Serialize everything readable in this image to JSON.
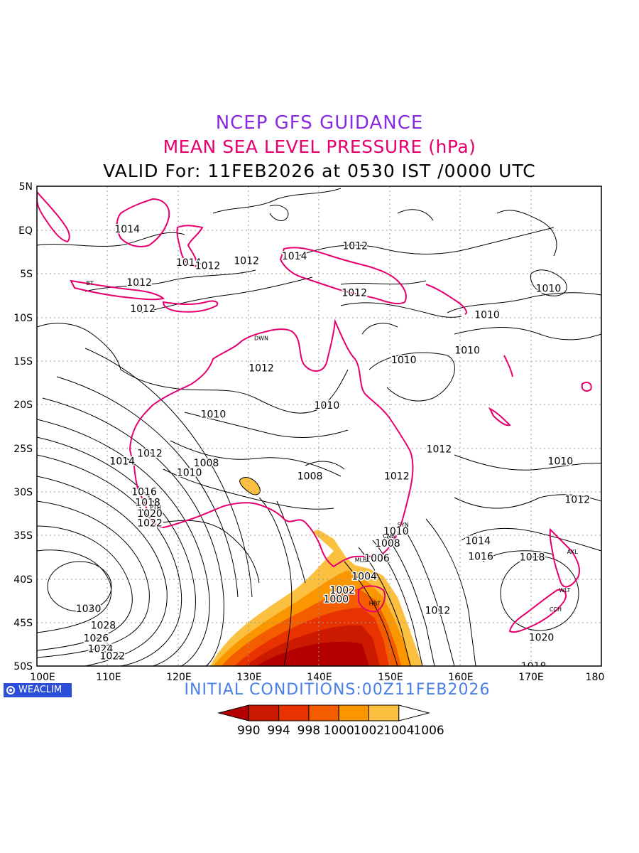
{
  "header": {
    "line1": "NCEP GFS GUIDANCE",
    "line2": "MEAN SEA LEVEL PRESSURE (hPa)",
    "line3": "VALID For: 11FEB2026 at 0530 IST /0000 UTC"
  },
  "footer": {
    "brand": "WEACLIM",
    "initial_conditions": "INITIAL CONDITIONS:00Z11FEB2026"
  },
  "axes": {
    "lat_labels": [
      "5N",
      "EQ",
      "5S",
      "10S",
      "15S",
      "20S",
      "25S",
      "30S",
      "35S",
      "40S",
      "45S",
      "50S"
    ],
    "lon_labels": [
      "100E",
      "110E",
      "120E",
      "130E",
      "140E",
      "150E",
      "160E",
      "170E",
      "180"
    ]
  },
  "colorbar": {
    "labels": [
      "990",
      "994",
      "998",
      "1000",
      "1002",
      "1004",
      "1006"
    ],
    "colors": [
      "#b40000",
      "#cc1a00",
      "#e83200",
      "#f45c00",
      "#fa9600",
      "#fcc040",
      "#ffffff"
    ]
  },
  "colors": {
    "title1": "#8a2be2",
    "title2": "#e6006e",
    "coastline": "#e6006e",
    "contour": "#000000",
    "brand_bg": "#2b4fd8",
    "initial": "#4a7fe8"
  },
  "contour_labels": [
    {
      "text": "1014",
      "lon": 112.8,
      "lat": 0.1
    },
    {
      "text": "1014",
      "lon": 121.5,
      "lat": -3.7
    },
    {
      "text": "1012",
      "lon": 124.2,
      "lat": -4.1
    },
    {
      "text": "1012",
      "lon": 129.7,
      "lat": -3.5
    },
    {
      "text": "1014",
      "lon": 136.5,
      "lat": -3.0
    },
    {
      "text": "1012",
      "lon": 145.1,
      "lat": -1.8
    },
    {
      "text": "1012",
      "lon": 114.5,
      "lat": -6.0
    },
    {
      "text": "1012",
      "lon": 145.0,
      "lat": -7.2
    },
    {
      "text": "1012",
      "lon": 115.0,
      "lat": -9.0
    },
    {
      "text": "1010",
      "lon": 172.5,
      "lat": -6.7
    },
    {
      "text": "1010",
      "lon": 163.8,
      "lat": -9.7
    },
    {
      "text": "1010",
      "lon": 161.0,
      "lat": -13.8
    },
    {
      "text": "1010",
      "lon": 152.0,
      "lat": -14.9
    },
    {
      "text": "1012",
      "lon": 131.8,
      "lat": -15.8
    },
    {
      "text": "1010",
      "lon": 141.1,
      "lat": -20.1
    },
    {
      "text": "1010",
      "lon": 125.0,
      "lat": -21.1
    },
    {
      "text": "1012",
      "lon": 116.0,
      "lat": -25.6
    },
    {
      "text": "1014",
      "lon": 112.1,
      "lat": -26.5
    },
    {
      "text": "1012",
      "lon": 157.0,
      "lat": -25.1
    },
    {
      "text": "1010",
      "lon": 174.2,
      "lat": -26.5
    },
    {
      "text": "1008",
      "lon": 124.0,
      "lat": -26.7
    },
    {
      "text": "1010",
      "lon": 121.6,
      "lat": -27.8
    },
    {
      "text": "1008",
      "lon": 138.7,
      "lat": -28.2
    },
    {
      "text": "1012",
      "lon": 151.0,
      "lat": -28.2
    },
    {
      "text": "1016",
      "lon": 115.2,
      "lat": -30.0
    },
    {
      "text": "1012",
      "lon": 176.6,
      "lat": -30.9
    },
    {
      "text": "1018",
      "lon": 115.7,
      "lat": -31.2
    },
    {
      "text": "1020",
      "lon": 116.0,
      "lat": -32.5
    },
    {
      "text": "1022",
      "lon": 116.0,
      "lat": -33.6
    },
    {
      "text": "1010",
      "lon": 150.9,
      "lat": -34.5
    },
    {
      "text": "1014",
      "lon": 162.5,
      "lat": -35.6
    },
    {
      "text": "1008",
      "lon": 149.7,
      "lat": -35.9
    },
    {
      "text": "1016",
      "lon": 162.9,
      "lat": -37.4
    },
    {
      "text": "1018",
      "lon": 170.2,
      "lat": -37.5
    },
    {
      "text": "1006",
      "lon": 148.2,
      "lat": -37.6
    },
    {
      "text": "1004",
      "lon": 146.4,
      "lat": -39.7
    },
    {
      "text": "1002",
      "lon": 143.3,
      "lat": -41.3
    },
    {
      "text": "1000",
      "lon": 142.4,
      "lat": -42.3
    },
    {
      "text": "1012",
      "lon": 156.8,
      "lat": -43.6
    },
    {
      "text": "1030",
      "lon": 107.3,
      "lat": -43.4
    },
    {
      "text": "1028",
      "lon": 109.4,
      "lat": -45.3
    },
    {
      "text": "1026",
      "lon": 108.4,
      "lat": -46.8
    },
    {
      "text": "1024",
      "lon": 109.0,
      "lat": -48.0
    },
    {
      "text": "1022",
      "lon": 110.7,
      "lat": -48.8
    },
    {
      "text": "1020",
      "lon": 171.5,
      "lat": -46.7
    },
    {
      "text": "1018",
      "lon": 170.4,
      "lat": -50.0
    }
  ],
  "station_labels": [
    {
      "text": "DWN",
      "lon": 131.8,
      "lat": -12.4
    },
    {
      "text": "PTH",
      "lon": 116.8,
      "lat": -31.8
    },
    {
      "text": "SYN",
      "lon": 151.9,
      "lat": -33.8
    },
    {
      "text": "CNB",
      "lon": 149.9,
      "lat": -35.1
    },
    {
      "text": "MLB",
      "lon": 145.9,
      "lat": -37.8
    },
    {
      "text": "HBT",
      "lon": 147.9,
      "lat": -42.8
    },
    {
      "text": "AKL",
      "lon": 175.9,
      "lat": -36.9
    },
    {
      "text": "WLT",
      "lon": 174.8,
      "lat": -41.3
    },
    {
      "text": "CCH",
      "lon": 173.5,
      "lat": -43.5
    },
    {
      "text": "BT",
      "lon": 107.5,
      "lat": -6.1
    }
  ]
}
